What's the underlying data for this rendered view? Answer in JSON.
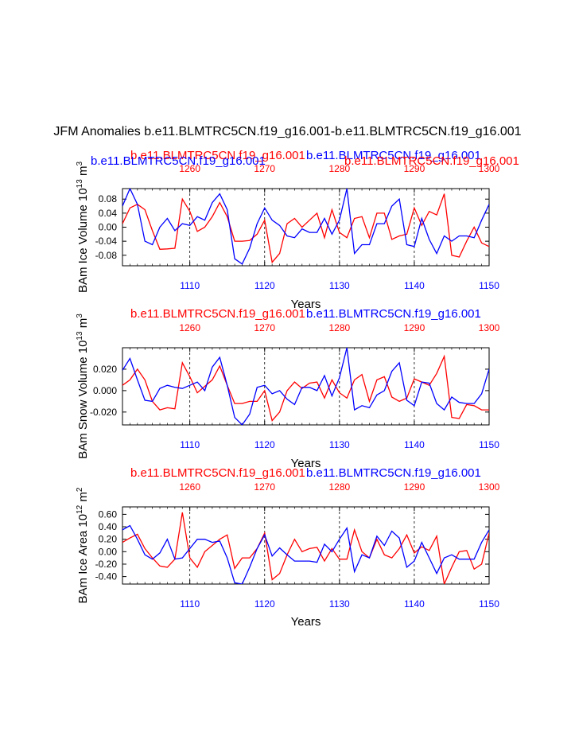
{
  "figure": {
    "title": "JFM Anomalies b.e11.BLMTRC5CN.f19_g16.001-b.e11.BLMTRC5CN.f19_g16.001",
    "colors": {
      "red": "#ff0000",
      "blue": "#0000ff",
      "black": "#000000"
    }
  },
  "chart_data": [
    {
      "type": "line",
      "title": "",
      "legend_red": "b.e11.BLMTRC5CN.f19_g16.001",
      "legend_blue": "b.e11.BLMTRC5CN.f19_g16.001",
      "legend_blue_left": "b.e11.BLMTRC5CN.f19_g16.001",
      "legend_red_right": "b.e11.BLMTRC5CN.f19_g16.001",
      "ylabel_main": "BAm Ice Volume 10",
      "ylabel_exp": "13",
      "ylabel_unit": " m",
      "ylabel_unit_exp": "3",
      "xlabel": "Years",
      "xlim_bottom": [
        1101,
        1150
      ],
      "xlim_top": [
        1251,
        1300
      ],
      "bottom_ticks": [
        "1110",
        "1120",
        "1130",
        "1140",
        "1150"
      ],
      "top_ticks": [
        "1260",
        "1270",
        "1280",
        "1290",
        "1300"
      ],
      "ylim": [
        -0.11,
        0.11
      ],
      "yticks": [
        0.08,
        0.04,
        0.0,
        -0.04,
        -0.08
      ],
      "ytick_labels": [
        "0.08",
        "0.04",
        "0.00",
        "-0.04",
        "-0.08"
      ],
      "series": [
        {
          "name": "b.e11.BLMTRC5CN.f19_g16.001",
          "color": "#ff0000",
          "values": [
            0.01,
            0.055,
            0.065,
            0.05,
            -0.01,
            -0.063,
            -0.062,
            -0.06,
            0.08,
            0.045,
            -0.012,
            0.0,
            0.03,
            0.07,
            0.03,
            -0.04,
            -0.04,
            -0.038,
            -0.02,
            0.02,
            -0.1,
            -0.075,
            0.01,
            0.025,
            0.0,
            0.02,
            0.04,
            -0.03,
            0.05,
            -0.015,
            -0.03,
            0.025,
            0.03,
            -0.03,
            0.04,
            0.04,
            -0.035,
            -0.025,
            -0.02,
            0.055,
            0.005,
            0.045,
            0.035,
            0.095,
            -0.08,
            -0.085,
            -0.04,
            0.0,
            -0.045,
            -0.055
          ]
        },
        {
          "name": "b.e11.BLMTRC5CN.f19_g16.001",
          "color": "#0000ff",
          "values": [
            0.06,
            0.11,
            0.065,
            -0.04,
            -0.05,
            0.0,
            0.025,
            -0.01,
            0.01,
            0.005,
            0.03,
            0.02,
            0.07,
            0.095,
            0.05,
            -0.09,
            -0.105,
            -0.06,
            0.01,
            0.055,
            0.02,
            0.005,
            -0.025,
            -0.03,
            -0.005,
            -0.015,
            -0.015,
            0.025,
            -0.02,
            0.02,
            0.11,
            -0.075,
            -0.05,
            -0.05,
            0.01,
            0.01,
            0.06,
            0.08,
            -0.05,
            -0.055,
            0.025,
            -0.035,
            -0.075,
            -0.025,
            -0.04,
            -0.025,
            -0.025,
            -0.03,
            0.02,
            0.065
          ]
        }
      ]
    },
    {
      "type": "line",
      "title": "",
      "legend_red": "b.e11.BLMTRC5CN.f19_g16.001",
      "legend_blue": "b.e11.BLMTRC5CN.f19_g16.001",
      "ylabel_main": "BAm Snow Volume 10",
      "ylabel_exp": "13",
      "ylabel_unit": " m",
      "ylabel_unit_exp": "3",
      "xlabel": "Years",
      "xlim_bottom": [
        1101,
        1150
      ],
      "xlim_top": [
        1251,
        1300
      ],
      "bottom_ticks": [
        "1110",
        "1120",
        "1130",
        "1140",
        "1150"
      ],
      "top_ticks": [
        "1260",
        "1270",
        "1280",
        "1290",
        "1300"
      ],
      "ylim": [
        -0.032,
        0.04
      ],
      "yticks": [
        0.02,
        0.0,
        -0.02
      ],
      "ytick_labels": [
        "0.020",
        "0.000",
        "-0.020"
      ],
      "series": [
        {
          "name": "b.e11.BLMTRC5CN.f19_g16.001",
          "color": "#ff0000",
          "values": [
            0.005,
            0.01,
            0.02,
            0.01,
            -0.01,
            -0.018,
            -0.016,
            -0.017,
            0.026,
            0.013,
            -0.002,
            0.004,
            0.01,
            0.023,
            0.005,
            -0.012,
            -0.012,
            -0.01,
            -0.01,
            0.0,
            -0.028,
            -0.02,
            0.0,
            0.008,
            0.002,
            0.007,
            0.008,
            -0.007,
            0.01,
            -0.002,
            -0.007,
            0.01,
            0.015,
            -0.01,
            0.01,
            0.013,
            -0.006,
            -0.01,
            -0.007,
            0.011,
            0.008,
            0.005,
            0.016,
            0.032,
            -0.025,
            -0.026,
            -0.013,
            -0.014,
            -0.018,
            -0.018
          ]
        },
        {
          "name": "b.e11.BLMTRC5CN.f19_g16.001",
          "color": "#0000ff",
          "values": [
            0.019,
            0.03,
            0.01,
            -0.009,
            -0.01,
            0.002,
            0.005,
            0.003,
            0.002,
            0.005,
            0.008,
            0.0,
            0.022,
            0.031,
            0.005,
            -0.025,
            -0.032,
            -0.022,
            0.003,
            0.005,
            -0.003,
            0.0,
            -0.008,
            -0.013,
            0.003,
            0.003,
            0.0,
            0.014,
            -0.005,
            0.012,
            0.04,
            -0.018,
            -0.014,
            -0.016,
            -0.004,
            0.0,
            0.018,
            0.026,
            -0.009,
            -0.014,
            0.008,
            0.007,
            -0.012,
            -0.018,
            -0.006,
            -0.011,
            -0.012,
            -0.012,
            -0.003,
            0.02
          ]
        }
      ]
    },
    {
      "type": "line",
      "title": "",
      "legend_red": "b.e11.BLMTRC5CN.f19_g16.001",
      "legend_blue": "b.e11.BLMTRC5CN.f19_g16.001",
      "ylabel_main": "BAm Ice Area 10",
      "ylabel_exp": "12",
      "ylabel_unit": " m",
      "ylabel_unit_exp": "2",
      "xlabel": "Years",
      "xlim_bottom": [
        1101,
        1150
      ],
      "xlim_top": [
        1251,
        1300
      ],
      "bottom_ticks": [
        "1110",
        "1120",
        "1130",
        "1140",
        "1150"
      ],
      "top_ticks": [
        "1260",
        "1270",
        "1280",
        "1290",
        "1300"
      ],
      "ylim": [
        -0.52,
        0.72
      ],
      "yticks": [
        0.6,
        0.4,
        0.2,
        0.0,
        -0.2,
        -0.4
      ],
      "ytick_labels": [
        "0.60",
        "0.40",
        "0.20",
        "0.00",
        "-0.20",
        "-0.40"
      ],
      "series": [
        {
          "name": "b.e11.BLMTRC5CN.f19_g16.001",
          "color": "#ff0000",
          "values": [
            0.15,
            0.22,
            0.28,
            0.05,
            -0.1,
            -0.23,
            -0.25,
            -0.12,
            0.63,
            -0.1,
            -0.25,
            0.0,
            0.1,
            0.2,
            0.27,
            -0.27,
            -0.1,
            -0.1,
            0.05,
            0.3,
            -0.45,
            -0.35,
            -0.05,
            0.2,
            0.0,
            0.05,
            0.07,
            -0.15,
            0.05,
            -0.12,
            -0.12,
            0.35,
            0.0,
            -0.1,
            0.2,
            -0.05,
            -0.1,
            0.05,
            0.27,
            -0.02,
            0.08,
            0.02,
            0.25,
            -0.52,
            -0.25,
            0.0,
            0.02,
            -0.28,
            -0.2,
            0.3
          ]
        },
        {
          "name": "b.e11.BLMTRC5CN.f19_g16.001",
          "color": "#0000ff",
          "values": [
            0.35,
            0.42,
            0.2,
            -0.05,
            -0.12,
            -0.02,
            0.2,
            -0.12,
            -0.1,
            0.05,
            0.2,
            0.2,
            0.15,
            0.17,
            -0.1,
            -0.5,
            -0.52,
            -0.25,
            0.05,
            0.27,
            -0.07,
            0.06,
            -0.05,
            -0.15,
            -0.15,
            -0.15,
            -0.17,
            0.12,
            0.0,
            0.2,
            0.38,
            -0.32,
            -0.05,
            -0.1,
            0.25,
            0.1,
            0.33,
            0.22,
            -0.25,
            -0.15,
            0.15,
            -0.1,
            -0.35,
            -0.1,
            -0.05,
            -0.12,
            -0.12,
            -0.12,
            0.15,
            0.35
          ]
        }
      ]
    }
  ]
}
